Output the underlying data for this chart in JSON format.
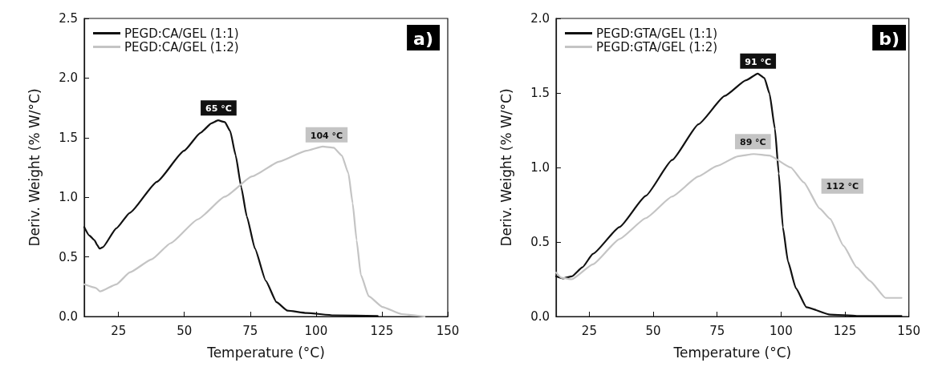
{
  "chart_data": [
    {
      "type": "line",
      "title": "a)",
      "xlabel": "Temperature (°C)",
      "ylabel": "Deriv. Weight (% W/°C)",
      "xlim": [
        12,
        150
      ],
      "xticks": [
        25,
        50,
        75,
        100,
        125,
        150
      ],
      "ylim": [
        0,
        2.5
      ],
      "yticks": [
        {
          "value": 0,
          "label": "0.0"
        },
        0.5,
        {
          "value": 1,
          "label": "1.0"
        },
        1.5,
        {
          "value": 2,
          "label": "2.0"
        },
        2.5
      ],
      "grid": false,
      "legend": "top left",
      "marker": "none",
      "line_style": "solid",
      "series": [
        {
          "name": "PEGD:CA/GEL (1:1)",
          "color": "#111111",
          "x": [
            12,
            13.9,
            15.9,
            16.9,
            17.8,
            19,
            24.2,
            29.3,
            39.6,
            49.9,
            56.1,
            60.3,
            62.8,
            65.4,
            67.4,
            69.5,
            71.6,
            73.7,
            76.8,
            80.9,
            85,
            89.1,
            96.4,
            106.7,
            123.4
          ],
          "values": [
            0.75,
            0.68,
            0.64,
            0.6,
            0.57,
            0.58,
            0.74,
            0.87,
            1.13,
            1.39,
            1.54,
            1.62,
            1.645,
            1.63,
            1.555,
            1.35,
            1.085,
            0.84,
            0.57,
            0.3,
            0.12,
            0.05,
            0.03,
            0.01,
            0.005
          ]
        },
        {
          "name": "PEGD:CA/GEL (1:2)",
          "color": "#c4c4c4",
          "x": [
            12,
            16.4,
            18,
            24.2,
            29.3,
            37.6,
            44.8,
            55.1,
            65.4,
            75.7,
            86.1,
            96.3,
            102.5,
            106.7,
            109.8,
            112.3,
            113.9,
            115.4,
            117,
            120,
            125.2,
            132.5,
            141.2
          ],
          "values": [
            0.27,
            0.24,
            0.21,
            0.27,
            0.37,
            0.48,
            0.615,
            0.815,
            1.005,
            1.175,
            1.3,
            1.39,
            1.425,
            1.415,
            1.35,
            1.2,
            0.95,
            0.64,
            0.35,
            0.17,
            0.08,
            0.02,
            0
          ]
        }
      ],
      "annotations": [
        {
          "text": "65 °C",
          "x": 63,
          "y": 1.645
        },
        {
          "text": "104 °C",
          "x": 104,
          "y": 1.42
        }
      ]
    },
    {
      "type": "line",
      "title": "b)",
      "xlabel": "Temperature (°C)",
      "ylabel": "Deriv. Weight (% W/°C)",
      "xlim": [
        12,
        150
      ],
      "xticks": [
        25,
        50,
        75,
        100,
        125,
        150
      ],
      "ylim": [
        0,
        2
      ],
      "yticks": [
        {
          "value": 0,
          "label": "0.0"
        },
        0.5,
        {
          "value": 1,
          "label": "1.0"
        },
        1.5,
        {
          "value": 2,
          "label": "2.0"
        }
      ],
      "grid": false,
      "legend": "top left",
      "marker": "none",
      "line_style": "solid",
      "series": [
        {
          "name": "PEGD:GTA/GEL (1:1)",
          "color": "#111111",
          "x": [
            12,
            14.6,
            18.2,
            22.3,
            26.4,
            36.8,
            47.1,
            57.4,
            67.7,
            78,
            86.3,
            90.9,
            93.5,
            95.5,
            97.6,
            99.1,
            100.7,
            102.7,
            105.8,
            109.9,
            119.2,
            129.6,
            147.1
          ],
          "values": [
            0.27,
            0.256,
            0.27,
            0.33,
            0.42,
            0.6,
            0.81,
            1.05,
            1.29,
            1.48,
            1.585,
            1.63,
            1.6,
            1.495,
            1.26,
            0.96,
            0.6,
            0.37,
            0.19,
            0.063,
            0.013,
            0.004,
            0.004
          ]
        },
        {
          "name": "PEGD:GTA/GEL (1:2)",
          "color": "#c4c4c4",
          "x": [
            12,
            14.1,
            18.2,
            26.4,
            36.8,
            47.1,
            57.4,
            67.7,
            74.9,
            83.1,
            89.3,
            95.5,
            103.8,
            108.9,
            115.1,
            119.2,
            124.4,
            129.6,
            134.7,
            140.9,
            147.1
          ],
          "values": [
            0.295,
            0.26,
            0.25,
            0.35,
            0.52,
            0.66,
            0.805,
            0.94,
            1.01,
            1.075,
            1.09,
            1.08,
            1,
            0.9,
            0.725,
            0.655,
            0.475,
            0.33,
            0.24,
            0.125,
            0.125
          ]
        }
      ],
      "annotations": [
        {
          "text": "91 °C",
          "x": 91,
          "y": 1.63
        },
        {
          "text": "89 °C",
          "x": 89,
          "y": 1.09
        },
        {
          "text": "112 °C",
          "x": 112,
          "y": 0.8
        }
      ]
    }
  ]
}
